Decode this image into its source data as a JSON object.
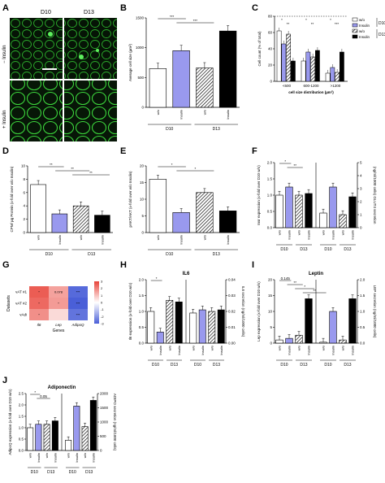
{
  "panel_labels": {
    "a": "A",
    "b": "B",
    "c": "C",
    "d": "D",
    "e": "E",
    "f": "F",
    "g": "G",
    "h": "H",
    "i": "I",
    "j": "J"
  },
  "panel_a": {
    "col1": "D10",
    "col2": "D13",
    "row1": "− Insulin",
    "row2": "+ Insulin"
  },
  "colors": {
    "white_bar": "#ffffff",
    "insulin_bar": "#9999ee",
    "black_bar": "#000000",
    "micro_green": "#3bd43b",
    "heat_red": "#e8443a",
    "heat_blue": "#4a5fd8"
  },
  "chart_data": [
    {
      "id": "B",
      "type": "bar",
      "ylabel": "Average cell size (µm²)",
      "ylim": [
        0,
        1500
      ],
      "yticks": [
        "0",
        "500",
        "1000",
        "1500"
      ],
      "categories": [
        "w/o",
        "Insulin",
        "w/o",
        "Insulin"
      ],
      "groups": [
        "D10",
        "D13"
      ],
      "values": [
        650,
        950,
        660,
        1280
      ],
      "sig": [
        "***",
        "***"
      ]
    },
    {
      "id": "C",
      "type": "bar",
      "ylabel": "Cell count (% of total)",
      "xlabel": "cell size distribution (µm²)",
      "ylim": [
        0,
        80
      ],
      "yticks": [
        "0",
        "20",
        "40",
        "60",
        "80"
      ],
      "categories": [
        "<600",
        "600-1200",
        ">1200"
      ],
      "series": [
        {
          "name": "w/o",
          "values": [
            62,
            25,
            10
          ]
        },
        {
          "name": "Insulin",
          "values": [
            46,
            36,
            17
          ]
        },
        {
          "name": "w/o",
          "values": [
            58,
            30,
            11
          ]
        },
        {
          "name": "Insulin",
          "values": [
            25,
            38,
            36
          ]
        }
      ],
      "legend": [
        "w/o",
        "Insulin",
        "w/o",
        "Insulin"
      ],
      "legend_groups": [
        "D10",
        "D13"
      ],
      "sig": [
        "*",
        "**",
        "*",
        "**",
        "*",
        "***"
      ]
    },
    {
      "id": "D",
      "type": "bar",
      "ylabel": "CPM/ µg Protein (x-fold over w/o Insulin)",
      "ylim": [
        0,
        10
      ],
      "yticks": [
        "0",
        "2",
        "4",
        "6",
        "8",
        "10"
      ],
      "categories": [
        "w/o",
        "Insulin",
        "w/o",
        "Insulin"
      ],
      "groups": [
        "D10",
        "D13"
      ],
      "values": [
        7.2,
        2.8,
        4.0,
        2.6
      ],
      "sig": [
        "**",
        "**",
        "**"
      ]
    },
    {
      "id": "E",
      "type": "bar",
      "ylabel": "pAKT/AKT (x-fold over w/o Insulin)",
      "ylim": [
        0,
        20
      ],
      "yticks": [
        "0",
        "5",
        "10",
        "15",
        "20"
      ],
      "categories": [
        "w/o",
        "Insulin",
        "w/o",
        "Insulin"
      ],
      "groups": [
        "D10",
        "D13"
      ],
      "values": [
        16,
        6,
        12,
        6.5
      ],
      "sig": [
        "*",
        "*"
      ]
    },
    {
      "id": "F",
      "type": "bar",
      "ylabel": "Insr expression (x-fold over D10 w/o)",
      "y2label": "(ng/ml/1000 cells) GLUT4 secretion",
      "ylim": [
        0,
        2.0
      ],
      "yticks": [
        "0.0",
        "0.5",
        "1.0",
        "1.5",
        "2.0"
      ],
      "y2ticks": [
        "0",
        "1",
        "2",
        "3",
        "4",
        "5"
      ],
      "categories": [
        "w/o",
        "Insulin",
        "w/o",
        "Insulin",
        "w/o",
        "Insulin",
        "w/o",
        "Insulin"
      ],
      "groups": [
        "D10",
        "D13",
        "D10",
        "D13"
      ],
      "values": [
        1.0,
        1.25,
        1.0,
        1.05,
        0.45,
        1.25,
        0.4,
        0.95
      ],
      "sig": [
        "*",
        "**"
      ]
    },
    {
      "id": "G",
      "type": "heatmap",
      "ylabel": "Datasets",
      "xlabel": "Genes",
      "rows": [
        "vAT #1",
        "vAT #2",
        "vAdi"
      ],
      "cols": [
        "Il6",
        "Lep",
        "AdipoQ"
      ],
      "values": [
        [
          2.6,
          1.5,
          -2.8
        ],
        [
          2.4,
          1.6,
          -3.0
        ],
        [
          1.8,
          0.6,
          -2.6
        ]
      ],
      "cell_labels": [
        [
          "*",
          "0.078",
          "***"
        ],
        [
          "*",
          "*",
          "***"
        ],
        [
          "*",
          "",
          "***"
        ]
      ],
      "scale": [
        "3",
        "2",
        "1",
        "0",
        "-1",
        "-2",
        "-3"
      ]
    },
    {
      "id": "H",
      "type": "bar",
      "title": "IL6",
      "ylabel": "Il6 expression (x-fold over D10 w/o)",
      "y2label": "IL6 secretion (ng/ml/1000 cells)",
      "ylim": [
        0,
        2.0
      ],
      "yticks": [
        "0.0",
        "0.5",
        "1.0",
        "1.5",
        "2.0"
      ],
      "y2ticks": [
        "0.00",
        "0.01",
        "0.02",
        "0.03",
        "0.04"
      ],
      "categories": [
        "w/o",
        "Insulin",
        "w/o",
        "Insulin",
        "w/o",
        "Insulin",
        "w/o",
        "Insulin"
      ],
      "groups": [
        "D10",
        "D13",
        "D10",
        "D13"
      ],
      "values": [
        1.0,
        0.35,
        1.35,
        1.3,
        0.95,
        1.05,
        1.0,
        1.05
      ],
      "sig": [
        "*"
      ]
    },
    {
      "id": "I",
      "type": "bar",
      "title": "Leptin",
      "ylabel": "Lep expression (x-fold over D10 w/o)",
      "y2label": "LEP secretion (ng/ml/1000 cells)",
      "ylim": [
        0,
        20
      ],
      "yticks": [
        "0",
        "5",
        "10",
        "15",
        "20"
      ],
      "y2ticks": [
        "0.0",
        "0.5",
        "1.0",
        "1.5",
        "2.0"
      ],
      "categories": [
        "w/o",
        "Insulin",
        "w/o",
        "Insulin",
        "w/o",
        "Insulin",
        "w/o",
        "Insulin"
      ],
      "groups": [
        "D10",
        "D13",
        "D10",
        "D13"
      ],
      "values": [
        1.0,
        1.5,
        2.5,
        14,
        0.3,
        10,
        1.0,
        14
      ],
      "sig": [
        "0.145",
        "**",
        "*",
        "**"
      ]
    },
    {
      "id": "J",
      "type": "bar",
      "title": "Adiponectin",
      "ylabel": "AdipoQ expression (x-fold over D10 w/o)",
      "y2label": "ADIPO secretion (ng/ml/1000 cells)",
      "ylim": [
        0,
        2.5
      ],
      "yticks": [
        "0.0",
        "0.5",
        "1.0",
        "1.5",
        "2.0",
        "2.5"
      ],
      "y2ticks": [
        "0",
        "500",
        "1000",
        "1500",
        "2000"
      ],
      "categories": [
        "w/o",
        "Insulin",
        "w/o",
        "Insulin",
        "w/o",
        "Insulin",
        "w/o",
        "Insulin"
      ],
      "groups": [
        "D10",
        "D13",
        "D10",
        "D13"
      ],
      "values": [
        1.0,
        1.15,
        1.15,
        1.3,
        0.45,
        1.95,
        1.05,
        2.2
      ],
      "sig": [
        "*",
        "0.05"
      ]
    }
  ]
}
